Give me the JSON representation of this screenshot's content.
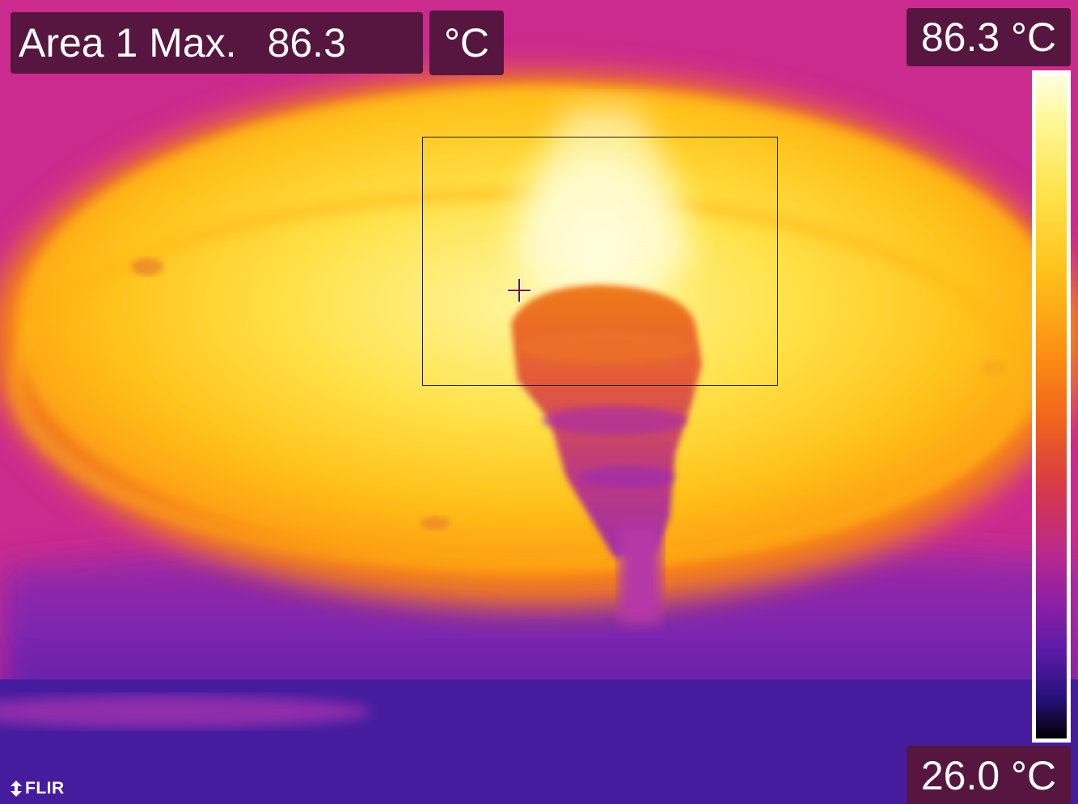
{
  "measurement": {
    "label": "Area 1 Max.",
    "value": "86.3",
    "unit": "°C"
  },
  "scale": {
    "max_label": "86.3 °C",
    "min_label": "26.0 °C",
    "palette": "iron",
    "colors": [
      "#ffffe2",
      "#ffe34a",
      "#fc8f12",
      "#d83a46",
      "#8a1fa6",
      "#26117a",
      "#000000"
    ]
  },
  "brand": {
    "logo_text": "FLIR"
  },
  "icons": {
    "crosshair": "max-spot-crosshair-icon",
    "logo": "flir-logo-icon"
  }
}
